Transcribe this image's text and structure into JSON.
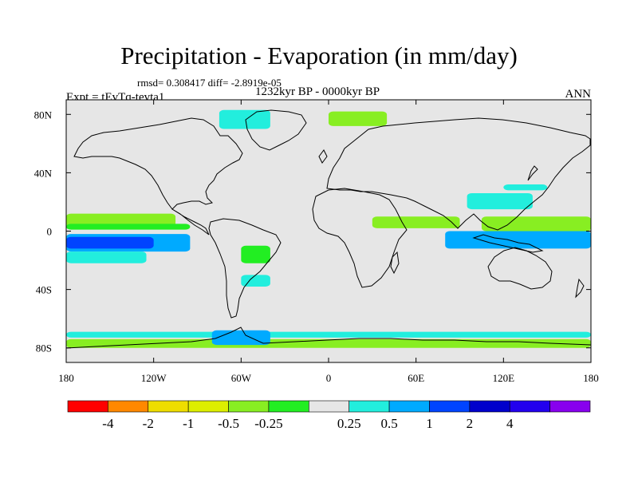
{
  "title": "Precipitation - Evaporation (in mm/day)",
  "stats": "rmsd= 0.308417 diff= -2.8919e-05",
  "period": "1232kyr BP - 0000kyr BP",
  "experiment": "Expt = tEvTq-tevta1",
  "season": "ANN",
  "map": {
    "projection": "cylindrical equidistant",
    "lon_range": [
      -180,
      180
    ],
    "lat_range": [
      -90,
      90
    ],
    "x_ticks": [
      {
        "lon": -180,
        "label": "180"
      },
      {
        "lon": -120,
        "label": "120W"
      },
      {
        "lon": -60,
        "label": "60W"
      },
      {
        "lon": 0,
        "label": "0"
      },
      {
        "lon": 60,
        "label": "60E"
      },
      {
        "lon": 120,
        "label": "120E"
      },
      {
        "lon": 180,
        "label": "180"
      }
    ],
    "y_ticks": [
      {
        "lat": 80,
        "label": "80N"
      },
      {
        "lat": 40,
        "label": "40N"
      },
      {
        "lat": 0,
        "label": "0"
      },
      {
        "lat": -40,
        "label": "40S"
      },
      {
        "lat": -80,
        "label": "80S"
      }
    ],
    "background_color": "#e6e6e6",
    "land_line_color": "#000000"
  },
  "colorbar": {
    "colors": [
      "#ff0000",
      "#ff8800",
      "#eedd00",
      "#ddee00",
      "#88ee22",
      "#22ee22",
      "#e6e6e6",
      "#22eedd",
      "#00aaff",
      "#0044ff",
      "#0000cc",
      "#2200ee",
      "#8800ee"
    ],
    "labels": [
      "-4",
      "-2",
      "-1",
      "-0.5",
      "-0.25",
      "0.25",
      "0.5",
      "1",
      "2",
      "4"
    ]
  },
  "regions": [
    {
      "level": "-0.5",
      "color": "#88ee22",
      "lon": [
        -180,
        -105
      ],
      "lat": [
        3,
        12
      ]
    },
    {
      "level": "-0.25",
      "color": "#22ee22",
      "lon": [
        -180,
        -95
      ],
      "lat": [
        1,
        5
      ]
    },
    {
      "level": "0.5",
      "color": "#00aaff",
      "lon": [
        -180,
        -95
      ],
      "lat": [
        -14,
        -2
      ]
    },
    {
      "level": "1",
      "color": "#0044ff",
      "lon": [
        -180,
        -120
      ],
      "lat": [
        -12,
        -4
      ]
    },
    {
      "level": "0.25",
      "color": "#22eedd",
      "lon": [
        -180,
        -125
      ],
      "lat": [
        -22,
        -14
      ]
    },
    {
      "level": "-0.5",
      "color": "#88ee22",
      "lon": [
        30,
        90
      ],
      "lat": [
        2,
        10
      ]
    },
    {
      "level": "0.5",
      "color": "#00aaff",
      "lon": [
        80,
        180
      ],
      "lat": [
        -12,
        0
      ]
    },
    {
      "level": "-0.5",
      "color": "#88ee22",
      "lon": [
        105,
        180
      ],
      "lat": [
        0,
        10
      ]
    },
    {
      "level": "0.25",
      "color": "#22eedd",
      "lon": [
        95,
        140
      ],
      "lat": [
        15,
        26
      ]
    },
    {
      "level": "0.25",
      "color": "#22eedd",
      "lon": [
        120,
        150
      ],
      "lat": [
        28,
        32
      ]
    },
    {
      "level": "-0.5",
      "color": "#88ee22",
      "lon": [
        0,
        40
      ],
      "lat": [
        72,
        82
      ]
    },
    {
      "level": "0.25",
      "color": "#22eedd",
      "lon": [
        -75,
        -40
      ],
      "lat": [
        70,
        83
      ]
    },
    {
      "level": "0.25",
      "color": "#22eedd",
      "lon": [
        -180,
        180
      ],
      "lat": [
        -73,
        -69
      ]
    },
    {
      "level": "-0.5",
      "color": "#88ee22",
      "lon": [
        -180,
        180
      ],
      "lat": [
        -80,
        -74
      ]
    },
    {
      "level": "0.5",
      "color": "#00aaff",
      "lon": [
        -80,
        -40
      ],
      "lat": [
        -78,
        -68
      ]
    },
    {
      "level": "-0.25",
      "color": "#22ee22",
      "lon": [
        -60,
        -40
      ],
      "lat": [
        -22,
        -10
      ]
    },
    {
      "level": "0.25",
      "color": "#22eedd",
      "lon": [
        -60,
        -40
      ],
      "lat": [
        -38,
        -30
      ]
    }
  ]
}
